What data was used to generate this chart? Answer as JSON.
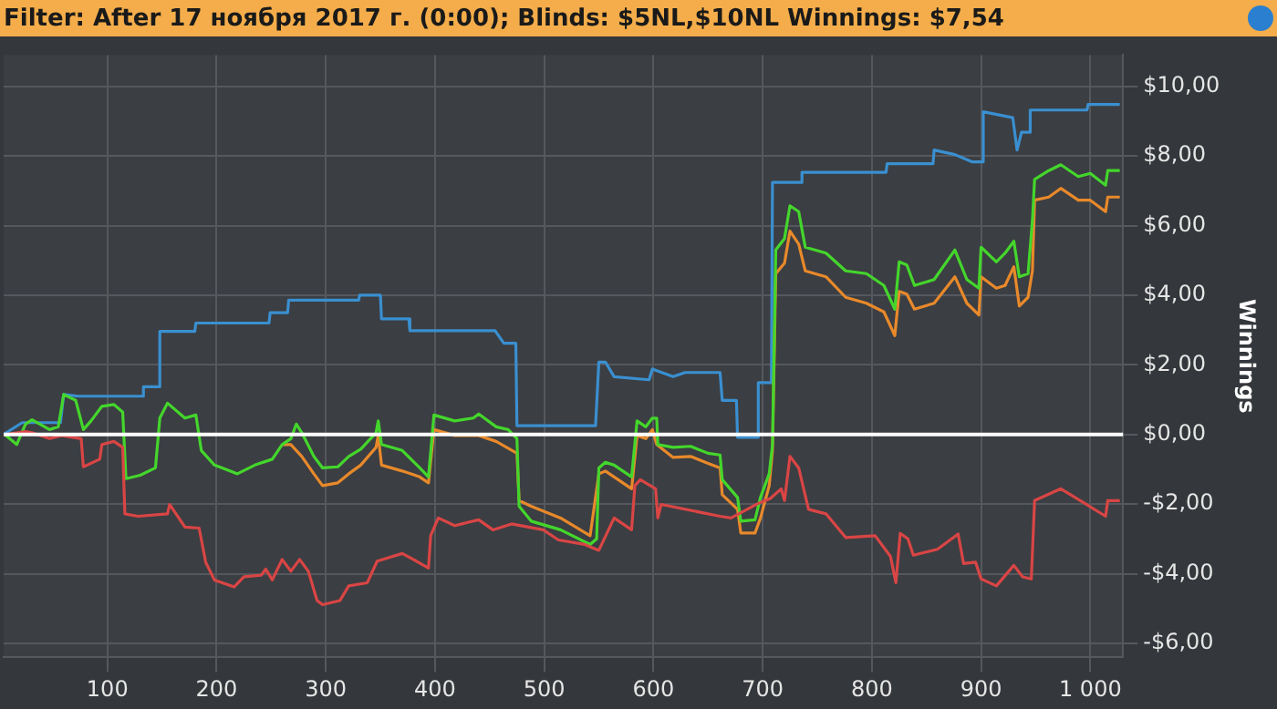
{
  "chart_data": {
    "type": "line",
    "title": "Filter: After 17 ноября 2017 г. (0:00); Blinds: $5NL,$10NL Winnings: $7,54",
    "ylabel": "Winnings",
    "xlim": [
      5,
      1030
    ],
    "ylim": [
      -6.4,
      10.9
    ],
    "xticks": [
      100,
      200,
      300,
      400,
      500,
      600,
      700,
      800,
      900,
      {
        "value": 1000,
        "label": "1 000"
      }
    ],
    "yticks": [
      {
        "value": -6,
        "label": "-$6,00"
      },
      {
        "value": -4,
        "label": "-$4,00"
      },
      {
        "value": -2,
        "label": "-$2,00"
      },
      {
        "value": 0,
        "label": "$0,00"
      },
      {
        "value": 2,
        "label": "$2,00"
      },
      {
        "value": 4,
        "label": "$4,00"
      },
      {
        "value": 6,
        "label": "$6,00"
      },
      {
        "value": 8,
        "label": "$8,00"
      },
      {
        "value": 10,
        "label": "$10,00"
      }
    ],
    "grid": true,
    "ref_lines": [
      {
        "axis": "y",
        "value": 0,
        "color": "#ffffff"
      }
    ],
    "series": [
      {
        "color": "#3a8fd0",
        "x": [
          5,
          22,
          57,
          60,
          73,
          132,
          133,
          147,
          148,
          180,
          181,
          248,
          249,
          265,
          266,
          330,
          331,
          350,
          351,
          376,
          377,
          455,
          463,
          474,
          475,
          547,
          550,
          556,
          564,
          596,
          599,
          618,
          629,
          661,
          663,
          676,
          677,
          695,
          696,
          708,
          709,
          735,
          736,
          813,
          814,
          856,
          857,
          876,
          892,
          901,
          902,
          929,
          933,
          937,
          944,
          945,
          997,
          998,
          1027
        ],
        "values": [
          0,
          0.34,
          0.34,
          1.15,
          1.1,
          1.1,
          1.37,
          1.37,
          2.96,
          2.96,
          3.2,
          3.2,
          3.5,
          3.5,
          3.86,
          3.86,
          4.0,
          4.0,
          3.32,
          3.32,
          2.98,
          2.98,
          2.62,
          2.62,
          0.25,
          0.25,
          2.08,
          2.08,
          1.66,
          1.57,
          1.88,
          1.66,
          1.78,
          1.78,
          0.98,
          0.98,
          -0.08,
          -0.08,
          1.49,
          1.49,
          7.24,
          7.24,
          7.53,
          7.53,
          7.78,
          7.78,
          8.17,
          8.04,
          7.83,
          7.83,
          9.27,
          9.1,
          8.17,
          8.68,
          8.68,
          9.32,
          9.32,
          9.48,
          9.48
        ]
      },
      {
        "color": "#e8892b",
        "x": [
          260,
          268,
          278,
          289,
          297,
          311,
          321,
          332,
          346,
          348,
          351,
          370,
          386,
          394,
          399,
          418,
          440,
          456,
          475,
          477,
          488,
          515,
          542,
          550,
          556,
          564,
          580,
          585,
          593,
          599,
          603,
          618,
          634,
          650,
          661,
          663,
          677,
          680,
          693,
          698,
          706,
          709,
          712,
          720,
          725,
          733,
          739,
          758,
          776,
          795,
          811,
          821,
          825,
          832,
          839,
          857,
          876,
          887,
          898,
          900,
          914,
          922,
          930,
          935,
          943,
          947,
          949,
          962,
          973,
          989,
          1000,
          1014,
          1016,
          1027
        ],
        "values": [
          -0.29,
          -0.29,
          -0.63,
          -1.13,
          -1.47,
          -1.39,
          -1.13,
          -0.88,
          -0.37,
          -0.03,
          -0.88,
          -1.05,
          -1.22,
          -1.39,
          0.14,
          -0.03,
          -0.03,
          -0.2,
          -0.54,
          -1.9,
          -2.06,
          -2.4,
          -2.91,
          -1.13,
          -1.05,
          -1.22,
          -1.56,
          -0.03,
          -0.12,
          0.14,
          -0.29,
          -0.66,
          -0.63,
          -0.83,
          -0.96,
          -1.73,
          -2.15,
          -2.83,
          -2.83,
          -2.4,
          -1.47,
          -0.46,
          4.62,
          4.92,
          5.84,
          5.47,
          4.7,
          4.53,
          3.94,
          3.77,
          3.52,
          2.84,
          4.11,
          4.03,
          3.6,
          3.77,
          4.53,
          3.77,
          3.43,
          4.53,
          4.2,
          4.28,
          4.82,
          3.69,
          3.94,
          4.7,
          6.73,
          6.82,
          7.07,
          6.73,
          6.73,
          6.4,
          6.82,
          6.82
        ]
      },
      {
        "color": "#44d62c",
        "x": [
          6,
          17,
          25,
          31,
          47,
          55,
          60,
          71,
          78,
          85,
          95,
          106,
          114,
          117,
          130,
          144,
          148,
          155,
          171,
          181,
          186,
          198,
          219,
          235,
          251,
          260,
          268,
          273,
          278,
          289,
          297,
          311,
          321,
          332,
          346,
          348,
          351,
          370,
          386,
          394,
          399,
          418,
          435,
          440,
          456,
          467,
          475,
          477,
          488,
          515,
          542,
          548,
          550,
          556,
          564,
          580,
          585,
          593,
          599,
          603,
          604,
          618,
          634,
          650,
          661,
          663,
          677,
          680,
          693,
          698,
          706,
          709,
          712,
          720,
          725,
          733,
          739,
          758,
          776,
          795,
          811,
          821,
          825,
          832,
          839,
          857,
          876,
          887,
          898,
          900,
          914,
          922,
          930,
          935,
          943,
          947,
          949,
          962,
          973,
          989,
          1000,
          1014,
          1016,
          1027
        ],
        "values": [
          0,
          -0.29,
          0.3,
          0.42,
          0.14,
          0.22,
          1.15,
          0.98,
          0.14,
          0.39,
          0.81,
          0.86,
          0.64,
          -1.27,
          -1.17,
          -0.96,
          0.47,
          0.9,
          0.47,
          0.56,
          -0.46,
          -0.88,
          -1.13,
          -0.88,
          -0.71,
          -0.29,
          -0.12,
          0.3,
          0.05,
          -0.63,
          -0.96,
          -0.93,
          -0.63,
          -0.42,
          0.05,
          0.39,
          -0.29,
          -0.46,
          -0.96,
          -1.22,
          0.56,
          0.39,
          0.47,
          0.59,
          0.22,
          0.14,
          -0.12,
          -2.06,
          -2.49,
          -2.74,
          -3.16,
          -3.0,
          -0.96,
          -0.8,
          -0.88,
          -1.22,
          0.39,
          0.22,
          0.47,
          0.47,
          -0.29,
          -0.37,
          -0.34,
          -0.54,
          -0.59,
          -1.3,
          -1.81,
          -2.49,
          -2.45,
          -1.81,
          -1.13,
          -0.29,
          5.3,
          5.63,
          6.57,
          6.4,
          5.38,
          5.21,
          4.7,
          4.62,
          4.28,
          3.6,
          4.96,
          4.87,
          4.28,
          4.45,
          5.3,
          4.45,
          4.2,
          5.38,
          4.96,
          5.21,
          5.55,
          4.53,
          4.62,
          6.14,
          7.33,
          7.58,
          7.75,
          7.41,
          7.5,
          7.16,
          7.58,
          7.58
        ]
      },
      {
        "color": "#d94545",
        "x": [
          6,
          25,
          31,
          47,
          58,
          76,
          78,
          93,
          95,
          106,
          114,
          116,
          128,
          155,
          157,
          171,
          184,
          190,
          198,
          216,
          225,
          241,
          245,
          251,
          260,
          268,
          276,
          284,
          292,
          297,
          313,
          321,
          338,
          347,
          370,
          383,
          394,
          396,
          403,
          418,
          440,
          453,
          470,
          499,
          513,
          537,
          550,
          564,
          580,
          583,
          588,
          602,
          604,
          607,
          661,
          671,
          696,
          707,
          717,
          720,
          725,
          733,
          742,
          758,
          776,
          803,
          817,
          822,
          826,
          833,
          838,
          860,
          879,
          884,
          895,
          900,
          914,
          930,
          938,
          946,
          949,
          973,
          995,
          1014,
          1016,
          1027
        ],
        "values": [
          0,
          0.08,
          0.05,
          -0.12,
          -0.03,
          -0.12,
          -0.93,
          -0.71,
          -0.29,
          -0.2,
          -0.37,
          -2.28,
          -2.35,
          -2.28,
          -2.01,
          -2.66,
          -2.69,
          -3.67,
          -4.18,
          -4.38,
          -4.09,
          -4.04,
          -3.87,
          -4.18,
          -3.59,
          -3.93,
          -3.59,
          -3.93,
          -4.77,
          -4.89,
          -4.77,
          -4.35,
          -4.26,
          -3.64,
          -3.42,
          -3.64,
          -3.84,
          -2.91,
          -2.4,
          -2.62,
          -2.45,
          -2.74,
          -2.57,
          -2.74,
          -3.03,
          -3.16,
          -3.33,
          -2.4,
          -2.74,
          -1.47,
          -1.3,
          -1.56,
          -2.4,
          -2.01,
          -2.35,
          -2.4,
          -1.98,
          -1.84,
          -1.56,
          -1.9,
          -0.63,
          -0.96,
          -2.15,
          -2.28,
          -2.96,
          -2.91,
          -3.5,
          -4.26,
          -2.84,
          -3.0,
          -3.47,
          -3.3,
          -2.86,
          -3.71,
          -3.67,
          -4.15,
          -4.35,
          -3.76,
          -4.09,
          -4.15,
          -1.9,
          -1.56,
          -1.98,
          -2.35,
          -1.9,
          -1.9
        ]
      }
    ]
  }
}
